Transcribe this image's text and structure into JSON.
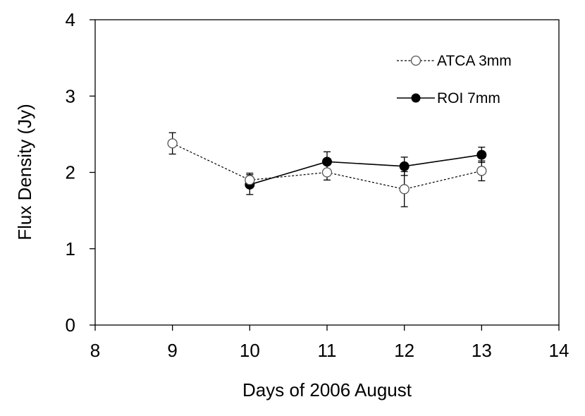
{
  "chart_data": {
    "type": "line",
    "title": "",
    "xlabel": "Days of 2006 August",
    "ylabel": "Flux Density (Jy)",
    "xlim": [
      8,
      14
    ],
    "ylim": [
      0,
      4
    ],
    "xticks": [
      8,
      9,
      10,
      11,
      12,
      13,
      14
    ],
    "yticks": [
      0,
      1,
      2,
      3,
      4
    ],
    "grid": false,
    "legend_position": "top-right",
    "series": [
      {
        "name": "ATCA 3mm",
        "style": "dashed",
        "marker": "open-circle",
        "color": "#000000",
        "x": [
          9,
          10,
          11,
          12,
          13
        ],
        "y": [
          2.38,
          1.9,
          2.0,
          1.78,
          2.02
        ],
        "yerr": [
          0.14,
          0.09,
          0.1,
          0.23,
          0.13
        ]
      },
      {
        "name": "ROI 7mm",
        "style": "solid",
        "marker": "filled-circle",
        "color": "#000000",
        "x": [
          10,
          11,
          12,
          13
        ],
        "y": [
          1.84,
          2.14,
          2.08,
          2.23
        ],
        "yerr": [
          0.13,
          0.13,
          0.12,
          0.1
        ]
      }
    ]
  }
}
